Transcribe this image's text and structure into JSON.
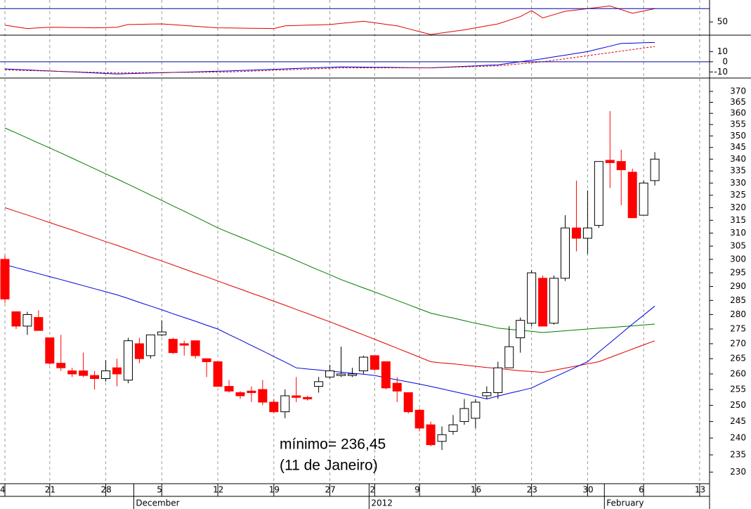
{
  "chart_data": {
    "type": "candlestick",
    "categories": [
      "4",
      null,
      null,
      null,
      "21",
      null,
      null,
      null,
      null,
      "28",
      null,
      null,
      null,
      null,
      "5",
      null,
      null,
      null,
      null,
      "12",
      null,
      null,
      null,
      null,
      "19",
      null,
      null,
      null,
      null,
      "27",
      null,
      null,
      null,
      "2",
      null,
      null,
      null,
      "9",
      null,
      null,
      null,
      null,
      "16",
      null,
      null,
      null,
      null,
      "23",
      null,
      null,
      null,
      null,
      "30",
      null,
      null,
      null,
      null,
      "6",
      null,
      null,
      null,
      null,
      "13"
    ],
    "month_categories": [
      null,
      null,
      null,
      null,
      null,
      null,
      null,
      null,
      null,
      null,
      null,
      null,
      "December",
      null,
      null,
      null,
      null,
      null,
      null,
      null,
      null,
      null,
      null,
      null,
      null,
      null,
      null,
      null,
      null,
      null,
      null,
      null,
      null,
      "2012",
      null,
      null,
      null,
      null,
      null,
      null,
      null,
      null,
      null,
      null,
      null,
      null,
      null,
      null,
      null,
      null,
      null,
      null,
      null,
      null,
      "February",
      null,
      null,
      null,
      null,
      null,
      null,
      null,
      null
    ],
    "open": [
      300,
      281,
      276,
      279,
      272,
      263.5,
      261,
      261,
      259.5,
      258.5,
      262,
      258,
      270,
      266,
      273,
      271.5,
      270,
      271,
      265,
      264,
      256,
      254,
      254.5,
      255,
      251,
      248,
      253,
      252.5,
      256,
      259,
      259.5,
      259.5,
      261,
      266,
      264,
      257,
      254,
      248.5,
      244,
      239,
      242,
      245,
      246,
      253,
      254,
      262,
      272,
      277,
      293,
      277,
      293,
      312,
      308,
      313,
      339.5,
      339,
      334.5,
      317,
      331,
      null,
      null,
      null,
      null
    ],
    "high": [
      301.5,
      281,
      281,
      281.5,
      272,
      273,
      262,
      267,
      261,
      264.5,
      265,
      272,
      272,
      273,
      278,
      272,
      271,
      271,
      265,
      264,
      258,
      254.5,
      256,
      258,
      252,
      255,
      259,
      253,
      259,
      263,
      269,
      262,
      266,
      266,
      264,
      259,
      254,
      249,
      245,
      243.5,
      247,
      252,
      252,
      256,
      264,
      276,
      279,
      296,
      294,
      294,
      317,
      331,
      327,
      339,
      361,
      344,
      336,
      331,
      343,
      null,
      null,
      null,
      null
    ],
    "low": [
      284,
      275,
      273,
      274.5,
      263,
      261,
      259,
      259,
      255,
      257.5,
      256,
      257,
      263.5,
      265,
      272.5,
      266.5,
      266,
      265,
      259,
      256,
      254,
      252,
      251,
      250,
      247.5,
      246,
      251,
      251.5,
      254,
      258.5,
      259,
      259,
      260,
      261,
      255,
      251,
      247.5,
      242,
      237.5,
      236.45,
      241,
      244,
      243,
      252,
      252,
      262,
      267,
      276,
      276,
      276.5,
      292,
      303,
      302,
      312,
      328,
      321,
      316,
      317,
      329,
      null,
      null,
      null,
      null
    ],
    "close": [
      285.5,
      276,
      280,
      274.5,
      263.5,
      262,
      260,
      259.5,
      258.5,
      261,
      260,
      271,
      265,
      273,
      274,
      267,
      269.5,
      266,
      264,
      256,
      254.5,
      253,
      254,
      251,
      248,
      253,
      252.5,
      252,
      257.5,
      261,
      260,
      260,
      265.5,
      261.5,
      255.5,
      254.5,
      248,
      243,
      238,
      241,
      244,
      249,
      251,
      254,
      262,
      269,
      278,
      295,
      276,
      293,
      312,
      308,
      312,
      339,
      338.5,
      335.5,
      316,
      330,
      340,
      null,
      null,
      null,
      null
    ],
    "up_color": "#ffffff",
    "down_color": "#ff0000",
    "series": [
      {
        "color": "#007a00",
        "values": [
          353.5,
          351.3,
          349.1,
          346.9,
          344.8,
          342.6,
          340.4,
          338.2,
          336,
          333.8,
          331.7,
          329.5,
          327.3,
          325.1,
          322.9,
          320.7,
          318.6,
          316.4,
          314.2,
          312,
          310.2,
          308.5,
          306.7,
          304.9,
          303.1,
          301.4,
          299.6,
          297.8,
          296,
          294.3,
          292.5,
          291,
          289.5,
          288,
          286.5,
          285,
          283.5,
          282,
          280.5,
          279.6,
          278.8,
          277.9,
          277,
          276.2,
          275.3,
          274.9,
          274.6,
          274.2,
          273.8,
          274.1,
          274.4,
          274.7,
          275,
          275.3,
          275.5,
          275.8,
          276.1,
          276.4,
          276.7,
          null,
          null,
          null,
          null
        ]
      },
      {
        "color": "#e00000",
        "values": [
          320,
          318.5,
          317.1,
          315.6,
          314.1,
          312.6,
          311.2,
          309.7,
          308.2,
          306.7,
          305.3,
          303.8,
          302.3,
          300.8,
          299.4,
          297.9,
          296.4,
          294.9,
          293.5,
          292,
          290.5,
          289.1,
          287.6,
          286.2,
          284.7,
          283.3,
          281.8,
          280.4,
          278.9,
          277.5,
          276,
          274.5,
          273,
          271.5,
          270,
          268.5,
          267,
          265.5,
          264,
          263.6,
          263.3,
          262.9,
          262.5,
          262.1,
          261.8,
          261.4,
          261,
          260.8,
          260.5,
          261.2,
          261.9,
          262.6,
          263.3,
          264,
          265.4,
          266.8,
          268.2,
          269.6,
          271,
          null,
          null,
          null,
          null
        ]
      },
      {
        "color": "#0000dd",
        "values": [
          298,
          296.9,
          295.8,
          294.7,
          293.6,
          292.5,
          291.4,
          290.3,
          289.2,
          288.1,
          287,
          285.7,
          284.3,
          283,
          281.7,
          280.3,
          279,
          277.7,
          276.3,
          275,
          273.1,
          271.3,
          269.4,
          267.6,
          265.7,
          263.9,
          262,
          261.6,
          261.3,
          260.9,
          260.6,
          260.2,
          259.9,
          259.5,
          258.8,
          258.1,
          257.4,
          256.7,
          256,
          255.2,
          254.4,
          253.6,
          252.8,
          252,
          252.9,
          253.8,
          254.6,
          255.5,
          257.2,
          258.9,
          260.6,
          262.3,
          264,
          267.2,
          270.3,
          273.5,
          276.7,
          279.8,
          283,
          null,
          null,
          null,
          null
        ]
      }
    ],
    "ylim": [
      226.7,
      375.9
    ],
    "log_scale": true,
    "grid": true,
    "yticks": [
      230,
      235,
      240,
      245,
      250,
      255,
      260,
      265,
      270,
      275,
      280,
      285,
      290,
      295,
      300,
      305,
      310,
      315,
      320,
      325,
      330,
      335,
      340,
      345,
      350,
      355,
      360,
      365,
      370
    ],
    "annotations": [
      "mínimo= 236,45",
      "(11 de Janeiro)"
    ],
    "annotation_color": "#0000ff",
    "indicators": [
      {
        "ylim": [
          30,
          83
        ],
        "yticks": [
          50
        ],
        "levels": [
          70
        ],
        "level_color": "#0000aa",
        "series": [
          {
            "color": "#e00000",
            "values": [
              45,
              42.5,
              40,
              41,
              42,
              41.8,
              41.5,
              41.3,
              41,
              41.5,
              42,
              46,
              46.3,
              46.7,
              47,
              45.8,
              44.6,
              43.4,
              42.2,
              41,
              40.8,
              40.6,
              40.4,
              40.2,
              40,
              44,
              44.5,
              45,
              45.5,
              46,
              47.7,
              49.3,
              51,
              48.7,
              46.3,
              44,
              39.7,
              35.3,
              31,
              33.3,
              35.7,
              38,
              41,
              44,
              47,
              52.5,
              58,
              67,
              56,
              61,
              66,
              68,
              70,
              72,
              74,
              68.5,
              63,
              66.5,
              70,
              null,
              null,
              null,
              null
            ]
          }
        ]
      },
      {
        "ylim": [
          -16,
          25.5
        ],
        "yticks": [
          10,
          0,
          -10
        ],
        "levels": [
          0
        ],
        "level_color": "#0000aa",
        "series": [
          {
            "color": "#0000dd",
            "values": [
              -7,
              -7.5,
              -8,
              -8.5,
              -9,
              -9.5,
              -10,
              -10.5,
              -11,
              -11.5,
              -12,
              -11.7,
              -11.4,
              -11.1,
              -10.8,
              -10.5,
              -10.2,
              -9.9,
              -9.6,
              -9.3,
              -9,
              -8.6,
              -8.2,
              -7.8,
              -7.4,
              -7,
              -6.6,
              -6.2,
              -5.8,
              -5.4,
              -5,
              -5.1,
              -5.3,
              -5.4,
              -5.5,
              -5.6,
              -5.8,
              -5.9,
              -6,
              -5.5,
              -5,
              -4.5,
              -4,
              -3.5,
              -3,
              -1.5,
              0,
              1.5,
              3,
              4.8,
              6.5,
              8.3,
              10,
              12.7,
              15.3,
              18,
              18.3,
              18.7,
              19,
              null,
              null,
              null,
              null
            ]
          },
          {
            "color": "#e00000",
            "dashed": true,
            "values": [
              -8,
              -8.3,
              -8.6,
              -8.9,
              -9.2,
              -9.5,
              -9.8,
              -10.1,
              -10.4,
              -10.7,
              -11,
              -10.9,
              -10.8,
              -10.7,
              -10.6,
              -10.5,
              -10.4,
              -10.3,
              -10.2,
              -10.1,
              -10,
              -9.6,
              -9.2,
              -8.8,
              -8.4,
              -8,
              -7.6,
              -7.2,
              -6.8,
              -6.4,
              -6,
              -6,
              -6,
              -6,
              -6,
              -6,
              -6,
              -6,
              -6,
              -5.7,
              -5.3,
              -5,
              -4.7,
              -4.3,
              -4,
              -3,
              -2,
              -1,
              0,
              1.5,
              3,
              4.5,
              6,
              7.5,
              9,
              10.5,
              12,
              13.5,
              15,
              null,
              null,
              null,
              null
            ]
          }
        ]
      }
    ]
  }
}
